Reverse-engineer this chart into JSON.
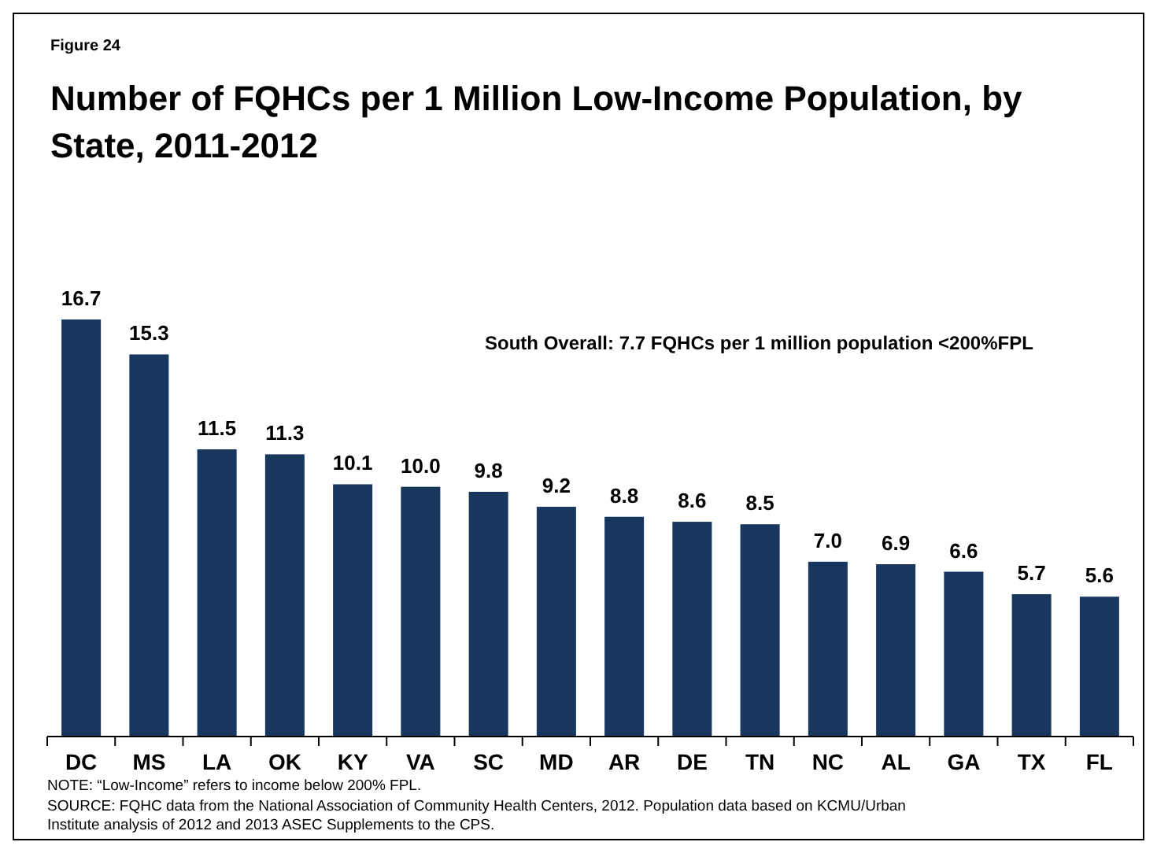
{
  "chart_data": {
    "type": "bar",
    "subtitle": "Figure 24",
    "title": "Number of FQHCs per 1 Million Low-Income Population, by State, 2011-2012",
    "categories": [
      "DC",
      "MS",
      "LA",
      "OK",
      "KY",
      "VA",
      "SC",
      "MD",
      "AR",
      "DE",
      "TN",
      "NC",
      "AL",
      "GA",
      "TX",
      "FL"
    ],
    "values": [
      16.7,
      15.3,
      11.5,
      11.3,
      10.1,
      10.0,
      9.8,
      9.2,
      8.8,
      8.6,
      8.5,
      7.0,
      6.9,
      6.6,
      5.7,
      5.6
    ],
    "value_labels": [
      "16.7",
      "15.3",
      "11.5",
      "11.3",
      "10.1",
      "10.0",
      "9.8",
      "9.2",
      "8.8",
      "8.6",
      "8.5",
      "7.0",
      "6.9",
      "6.6",
      "5.7",
      "5.6"
    ],
    "color": "#17375e",
    "data_labels": true,
    "annotations": [
      "South Overall: 7.7 FQHCs per 1 million population <200%FPL",
      "NOTE: “Low-Income” refers to income below 200% FPL.",
      "SOURCE: FQHC data from the National Association of Community Health Centers, 2012. Population data based on KCMU/Urban Institute analysis of 2012 and 2013 ASEC Supplements to the CPS."
    ]
  }
}
